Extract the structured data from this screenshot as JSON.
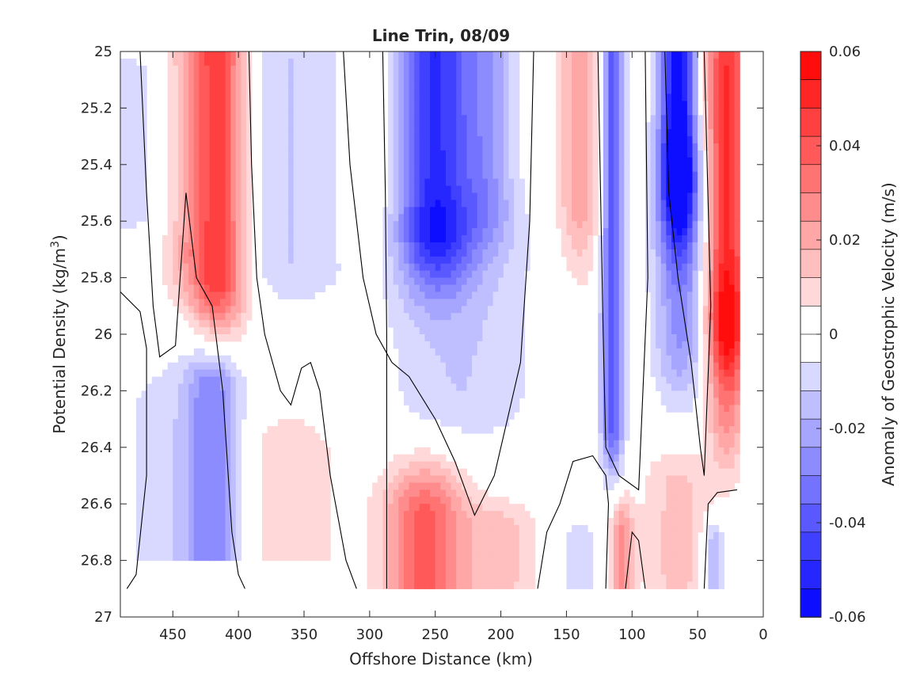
{
  "chart_data": {
    "type": "heatmap",
    "title": "Line Trin, 08/09",
    "xlabel": "Offshore Distance (km)",
    "ylabel_main": "Potential Density (kg/m",
    "ylabel_sup": "3",
    "ylabel_close": ")",
    "colorbar_label": "Anomaly of Geostrophic Velocity (m/s)",
    "x_range": [
      490,
      0
    ],
    "x_reversed": true,
    "y_range": [
      25,
      27
    ],
    "y_reversed": true,
    "x_ticks": [
      450,
      400,
      350,
      300,
      250,
      200,
      150,
      100,
      50,
      0
    ],
    "x_tick_labels": [
      "450",
      "400",
      "350",
      "300",
      "250",
      "200",
      "150",
      "100",
      "50",
      "0"
    ],
    "y_ticks": [
      25,
      25.2,
      25.4,
      25.6,
      25.8,
      26,
      26.2,
      26.4,
      26.6,
      26.8,
      27
    ],
    "y_tick_labels": [
      "25",
      "25.2",
      "25.4",
      "25.6",
      "25.8",
      "26",
      "26.2",
      "26.4",
      "26.6",
      "26.8",
      "27"
    ],
    "colorbar_range": [
      -0.06,
      0.06
    ],
    "colorbar_ticks": [
      0.06,
      0.04,
      0.02,
      0,
      -0.02,
      -0.04,
      -0.06
    ],
    "colorbar_tick_labels": [
      "0.06",
      "0.04",
      "0.02",
      "0",
      "-0.02",
      "-0.04",
      "-0.06"
    ],
    "colorbar_levels": 20,
    "colormap": {
      "positive": "#ff0000",
      "negative": "#0000ff",
      "zero": "#ffffff"
    },
    "grid": false,
    "features": [
      {
        "x": 482,
        "sd": 40,
        "y0": 25.1,
        "y1": 25.55,
        "sy": 0.12,
        "amp": -0.009
      },
      {
        "x": 440,
        "sd": 15,
        "y0": 25.0,
        "y1": 25.7,
        "sy": 0.18,
        "amp": 0.015
      },
      {
        "x": 415,
        "sd": 15,
        "y0": 25.0,
        "y1": 25.8,
        "sy": 0.2,
        "amp": 0.045
      },
      {
        "x": 460,
        "sd": 25,
        "y0": 26.3,
        "y1": 26.8,
        "sy": 0.25,
        "amp": -0.008
      },
      {
        "x": 420,
        "sd": 15,
        "y0": 26.2,
        "y1": 26.85,
        "sy": 0.15,
        "amp": -0.028
      },
      {
        "x": 360,
        "sd": 30,
        "y0": 25.0,
        "y1": 25.75,
        "sy": 0.15,
        "amp": -0.012
      },
      {
        "x": 360,
        "sd": 25,
        "y0": 26.45,
        "y1": 26.9,
        "sy": 0.18,
        "amp": 0.012
      },
      {
        "x": 300,
        "sd": 12,
        "y0": 25.0,
        "y1": 25.6,
        "sy": 0.2,
        "amp": 0.008
      },
      {
        "x": 250,
        "sd": 20,
        "y0": 25.0,
        "y1": 25.6,
        "sy": 0.25,
        "amp": -0.048
      },
      {
        "x": 210,
        "sd": 15,
        "y0": 25.0,
        "y1": 25.5,
        "sy": 0.2,
        "amp": -0.02
      },
      {
        "x": 230,
        "sd": 40,
        "y0": 25.7,
        "y1": 26.2,
        "sy": 0.2,
        "amp": -0.012
      },
      {
        "x": 258,
        "sd": 22,
        "y0": 26.65,
        "y1": 26.9,
        "sy": 0.2,
        "amp": 0.038
      },
      {
        "x": 200,
        "sd": 20,
        "y0": 26.7,
        "y1": 26.85,
        "sy": 0.12,
        "amp": 0.015
      },
      {
        "x": 140,
        "sd": 12,
        "y0": 25.0,
        "y1": 25.5,
        "sy": 0.3,
        "amp": 0.022
      },
      {
        "x": 115,
        "sd": 6,
        "y0": 25.0,
        "y1": 26.3,
        "sy": 0.2,
        "amp": -0.04
      },
      {
        "x": 108,
        "sd": 6,
        "y0": 26.7,
        "y1": 26.9,
        "sy": 0.12,
        "amp": 0.025
      },
      {
        "x": 140,
        "sd": 12,
        "y0": 26.75,
        "y1": 26.9,
        "sy": 0.1,
        "amp": -0.01
      },
      {
        "x": 65,
        "sd": 10,
        "y0": 25.0,
        "y1": 25.4,
        "sy": 0.3,
        "amp": -0.058
      },
      {
        "x": 62,
        "sd": 15,
        "y0": 25.5,
        "y1": 26.0,
        "sy": 0.25,
        "amp": -0.025
      },
      {
        "x": 65,
        "sd": 20,
        "y0": 26.55,
        "y1": 26.85,
        "sy": 0.15,
        "amp": 0.014
      },
      {
        "x": 28,
        "sd": 12,
        "y0": 25.1,
        "y1": 25.9,
        "sy": 0.3,
        "amp": 0.05
      },
      {
        "x": 28,
        "sd": 10,
        "y0": 26.0,
        "y1": 26.3,
        "sy": 0.2,
        "amp": 0.02
      },
      {
        "x": 38,
        "sd": 6,
        "y0": 26.75,
        "y1": 26.9,
        "sy": 0.1,
        "amp": -0.022
      }
    ],
    "zero_contours": [
      [
        [
          490,
          25.85
        ],
        [
          475,
          25.92
        ],
        [
          470,
          26.05
        ],
        [
          470,
          26.5
        ],
        [
          478,
          26.85
        ],
        [
          485,
          26.9
        ]
      ],
      [
        [
          475,
          25.0
        ],
        [
          470,
          25.5
        ],
        [
          465,
          25.9
        ],
        [
          460,
          26.08
        ],
        [
          448,
          26.04
        ],
        [
          440,
          25.5
        ],
        [
          432,
          25.8
        ],
        [
          420,
          25.9
        ],
        [
          412,
          26.2
        ],
        [
          405,
          26.7
        ],
        [
          400,
          26.85
        ],
        [
          395,
          26.9
        ]
      ],
      [
        [
          392,
          25.0
        ],
        [
          390,
          25.4
        ],
        [
          386,
          25.8
        ],
        [
          380,
          26.0
        ],
        [
          368,
          26.2
        ],
        [
          360,
          26.25
        ],
        [
          352,
          26.12
        ],
        [
          345,
          26.1
        ],
        [
          338,
          26.2
        ],
        [
          330,
          26.5
        ],
        [
          318,
          26.8
        ],
        [
          310,
          26.9
        ]
      ],
      [
        [
          320,
          25.0
        ],
        [
          315,
          25.4
        ],
        [
          305,
          25.8
        ],
        [
          295,
          26.0
        ],
        [
          283,
          26.1
        ],
        [
          270,
          26.15
        ],
        [
          250,
          26.3
        ],
        [
          235,
          26.45
        ],
        [
          220,
          26.64
        ],
        [
          205,
          26.5
        ],
        [
          195,
          26.3
        ],
        [
          185,
          26.1
        ],
        [
          178,
          25.6
        ],
        [
          175,
          25.0
        ]
      ],
      [
        [
          290,
          25.0
        ],
        [
          288,
          25.5
        ],
        [
          287,
          26.0
        ],
        [
          287,
          26.9
        ]
      ],
      [
        [
          172,
          26.9
        ],
        [
          165,
          26.7
        ],
        [
          155,
          26.6
        ],
        [
          145,
          26.45
        ],
        [
          130,
          26.43
        ],
        [
          120,
          26.5
        ],
        [
          118,
          26.6
        ],
        [
          120,
          26.9
        ]
      ],
      [
        [
          126,
          25.0
        ],
        [
          124,
          25.5
        ],
        [
          122,
          26.0
        ],
        [
          120,
          26.4
        ],
        [
          110,
          26.5
        ],
        [
          95,
          26.55
        ],
        [
          88,
          25.8
        ],
        [
          90,
          25.0
        ]
      ],
      [
        [
          90,
          26.9
        ],
        [
          95,
          26.73
        ],
        [
          100,
          26.7
        ],
        [
          105,
          26.9
        ]
      ],
      [
        [
          75,
          25.0
        ],
        [
          72,
          25.5
        ],
        [
          65,
          25.8
        ],
        [
          55,
          26.1
        ],
        [
          48,
          26.4
        ],
        [
          45,
          26.5
        ],
        [
          40,
          25.9
        ],
        [
          45,
          25.0
        ]
      ],
      [
        [
          45,
          26.9
        ],
        [
          42,
          26.6
        ],
        [
          35,
          26.56
        ],
        [
          20,
          26.55
        ]
      ]
    ]
  }
}
